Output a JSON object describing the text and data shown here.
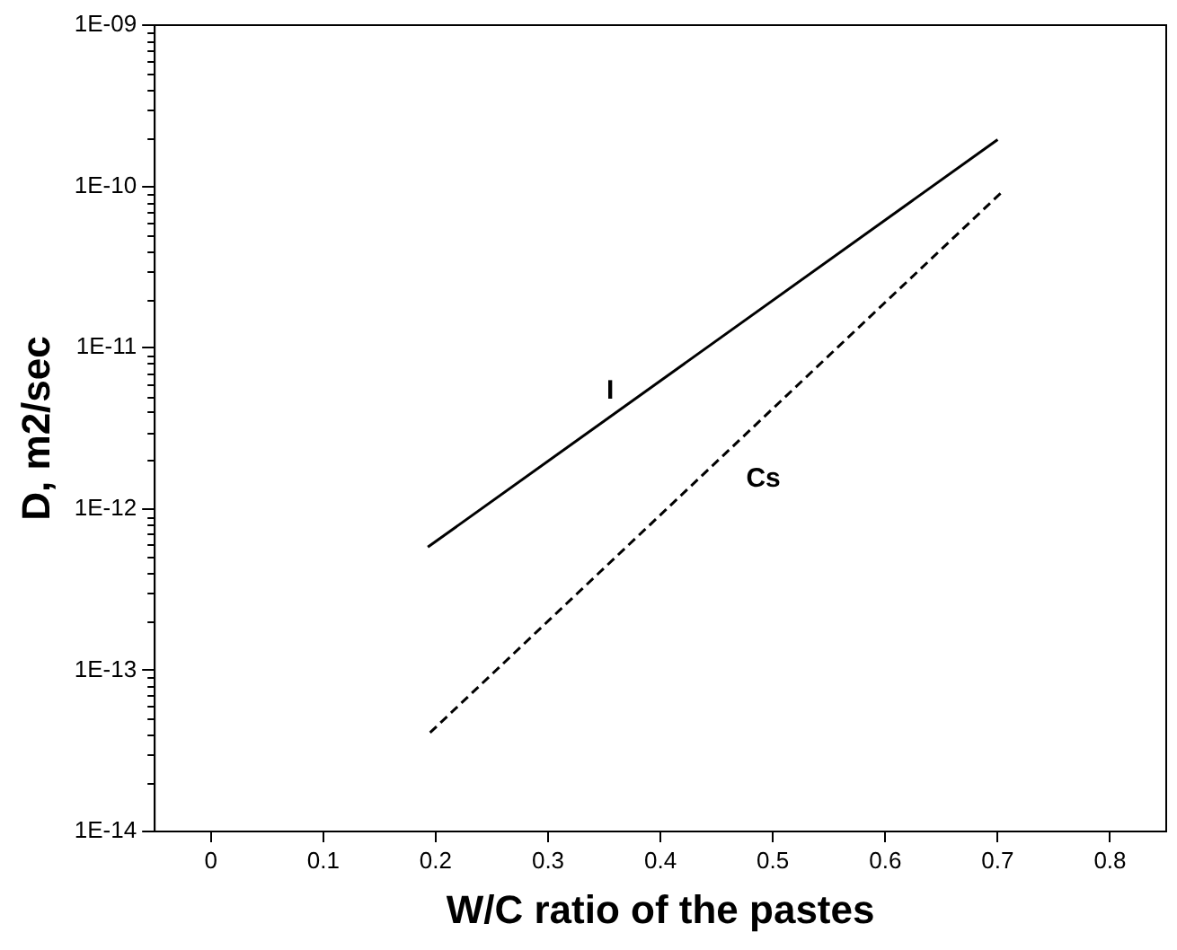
{
  "chart_data": {
    "type": "line",
    "xlabel": "W/C ratio of the pastes",
    "ylabel": "D, m2/sec",
    "log": "y",
    "grid": false,
    "legend": false,
    "marker": "none",
    "xlim": [
      -0.05,
      0.85
    ],
    "xticks": [
      0,
      0.1,
      0.2,
      0.3,
      0.4,
      0.5,
      0.6,
      0.7,
      0.8
    ],
    "ylim": [
      1e-14,
      1e-09
    ],
    "yticks": [
      {
        "value": 1e-14,
        "label": "1E-14"
      },
      {
        "value": 1e-13,
        "label": "1E-13"
      },
      {
        "value": 1e-12,
        "label": "1E-12"
      },
      {
        "value": 1e-11,
        "label": "1E-11"
      },
      {
        "value": 1e-10,
        "label": "1E-10"
      },
      {
        "value": 1e-09,
        "label": "1E-09"
      }
    ],
    "series": [
      {
        "name": "I",
        "color": "#000000",
        "line_style": "solid",
        "x": [
          0.193,
          0.7
        ],
        "values": [
          5.8e-13,
          1.95e-10
        ]
      },
      {
        "name": "Cs",
        "color": "#000000",
        "line_style": "dashed",
        "x": [
          0.195,
          0.705
        ],
        "values": [
          4.1e-14,
          9.4e-11
        ]
      }
    ]
  }
}
